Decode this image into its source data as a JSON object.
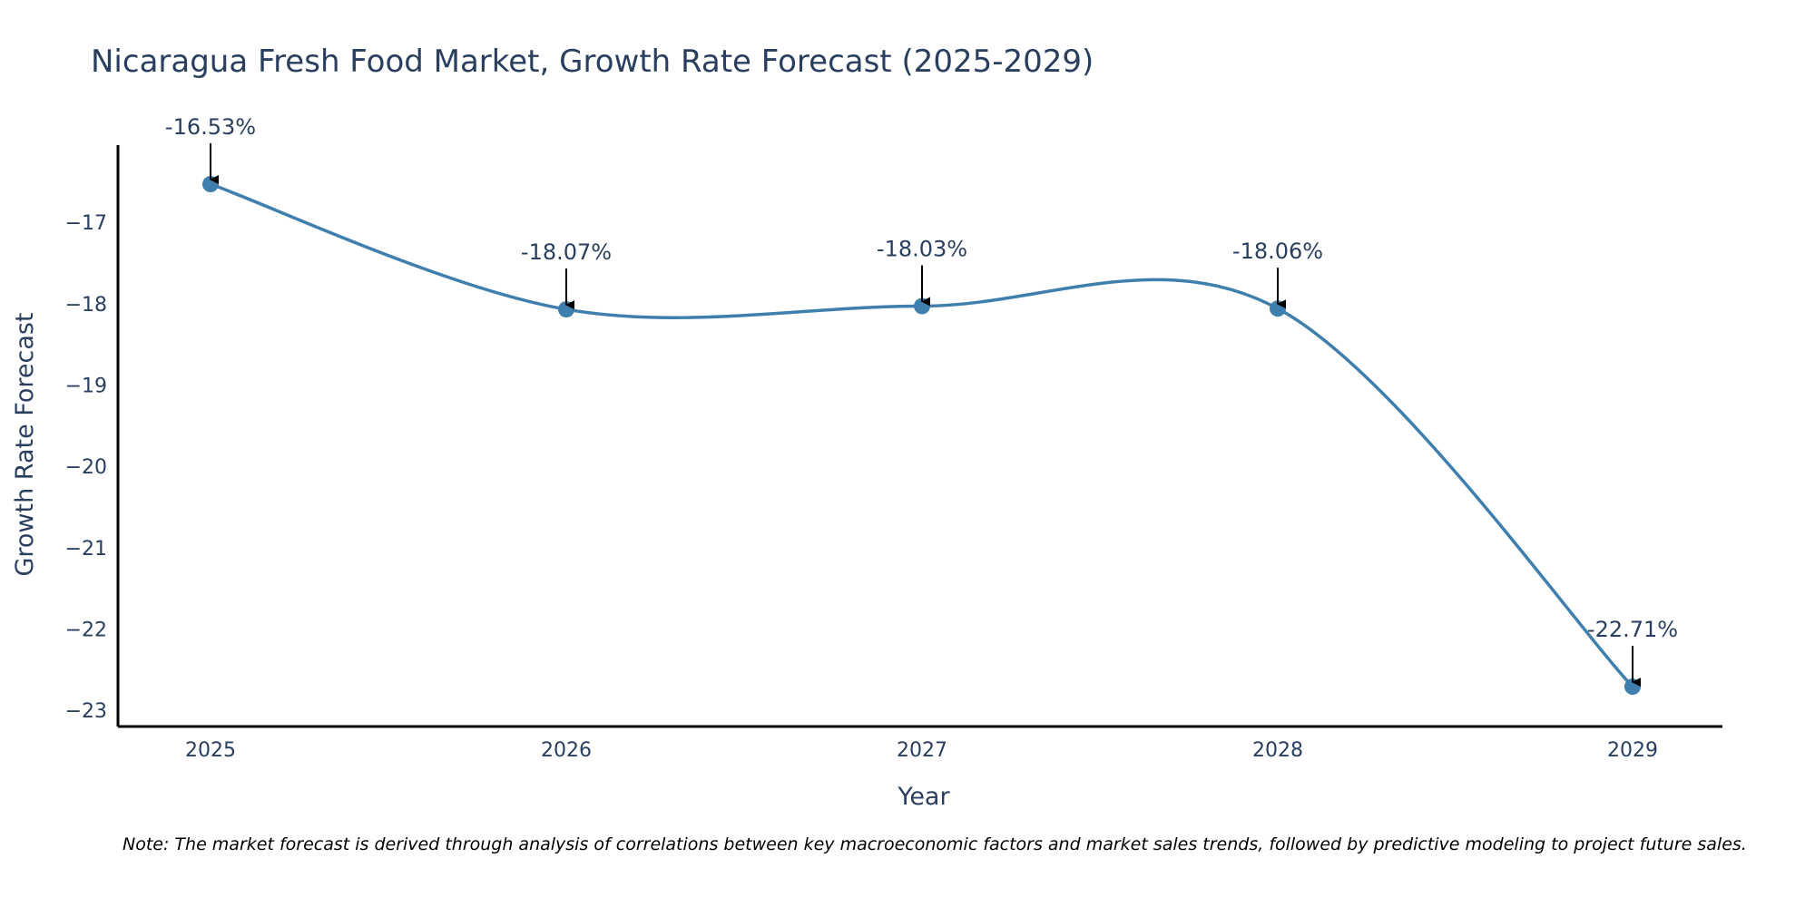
{
  "chart_data": {
    "type": "line",
    "title": "Nicaragua Fresh Food Market, Growth Rate Forecast (2025-2029)",
    "xlabel": "Year",
    "ylabel": "Growth Rate Forecast",
    "categories": [
      "2025",
      "2026",
      "2027",
      "2028",
      "2029"
    ],
    "series": [
      {
        "name": "Growth Rate Forecast",
        "values": [
          -16.53,
          -18.07,
          -18.03,
          -18.06,
          -22.71
        ]
      }
    ],
    "annotations": [
      "-16.53%",
      "-18.07%",
      "-18.03%",
      "-18.06%",
      "-22.71%"
    ],
    "y_ticks": [
      -17,
      -18,
      -19,
      -20,
      -21,
      -22,
      -23
    ],
    "y_tick_labels": [
      "−17",
      "−18",
      "−19",
      "−20",
      "−21",
      "−22",
      "−23"
    ],
    "ylim": [
      -23.2,
      -16.05
    ],
    "grid": false,
    "line_shape": "spline",
    "colors": {
      "line": "#3f7fae",
      "marker": "#3f7fae",
      "arrow": "#000000",
      "axis": "#000000",
      "text": "#2a3f5f"
    }
  },
  "note": "Note: The market forecast is derived through analysis of correlations between key macroeconomic factors and market sales trends, followed by predictive modeling to project future sales."
}
